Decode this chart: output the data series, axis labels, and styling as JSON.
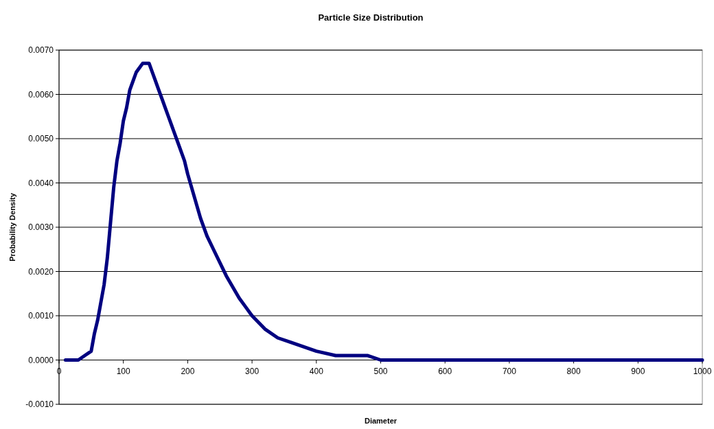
{
  "chart_data": {
    "type": "line",
    "title": "Particle Size Distribution",
    "xlabel": "Diameter",
    "ylabel": "Probability Density",
    "x": [
      10,
      20,
      30,
      40,
      50,
      55,
      60,
      65,
      70,
      75,
      80,
      85,
      90,
      95,
      100,
      105,
      110,
      115,
      120,
      125,
      130,
      140,
      145,
      150,
      155,
      160,
      165,
      170,
      175,
      185,
      195,
      200,
      210,
      220,
      230,
      240,
      260,
      280,
      290,
      300,
      320,
      340,
      360,
      380,
      400,
      430,
      450,
      480,
      500,
      530,
      540,
      600,
      700,
      800,
      900,
      1000
    ],
    "series": [
      {
        "color": "#000080",
        "values": [
          0,
          0,
          0,
          0.0001,
          0.0002,
          0.0006,
          0.0009,
          0.0013,
          0.0017,
          0.0023,
          0.0031,
          0.0039,
          0.0045,
          0.0049,
          0.0054,
          0.0057,
          0.0061,
          0.0063,
          0.0065,
          0.0066,
          0.0067,
          0.0067,
          0.0065,
          0.0063,
          0.0061,
          0.0059,
          0.0057,
          0.0055,
          0.0053,
          0.0049,
          0.0045,
          0.0042,
          0.0037,
          0.0032,
          0.0028,
          0.0025,
          0.0019,
          0.0014,
          0.0012,
          0.001,
          0.0007,
          0.0005,
          0.0004,
          0.0003,
          0.0002,
          0.0001,
          0.0001,
          0.0001,
          0,
          0,
          0,
          0,
          0,
          0,
          0,
          0
        ]
      }
    ],
    "xlim": [
      0,
      1000
    ],
    "xticks": [
      0,
      100,
      200,
      300,
      400,
      500,
      600,
      700,
      800,
      900,
      1000
    ],
    "ylim": [
      -0.001,
      0.007
    ],
    "yticks": [
      {
        "value": -0.001,
        "label": "-0.0010"
      },
      {
        "value": 0,
        "label": "0.0000"
      },
      {
        "value": 0.001,
        "label": "0.0010"
      },
      {
        "value": 0.002,
        "label": "0.0020"
      },
      {
        "value": 0.003,
        "label": "0.0030"
      },
      {
        "value": 0.004,
        "label": "0.0040"
      },
      {
        "value": 0.005,
        "label": "0.0050"
      },
      {
        "value": 0.006,
        "label": "0.0060"
      },
      {
        "value": 0.007,
        "label": "0.0070"
      }
    ],
    "grid": "y",
    "marker": "none",
    "line_style": "solid"
  }
}
